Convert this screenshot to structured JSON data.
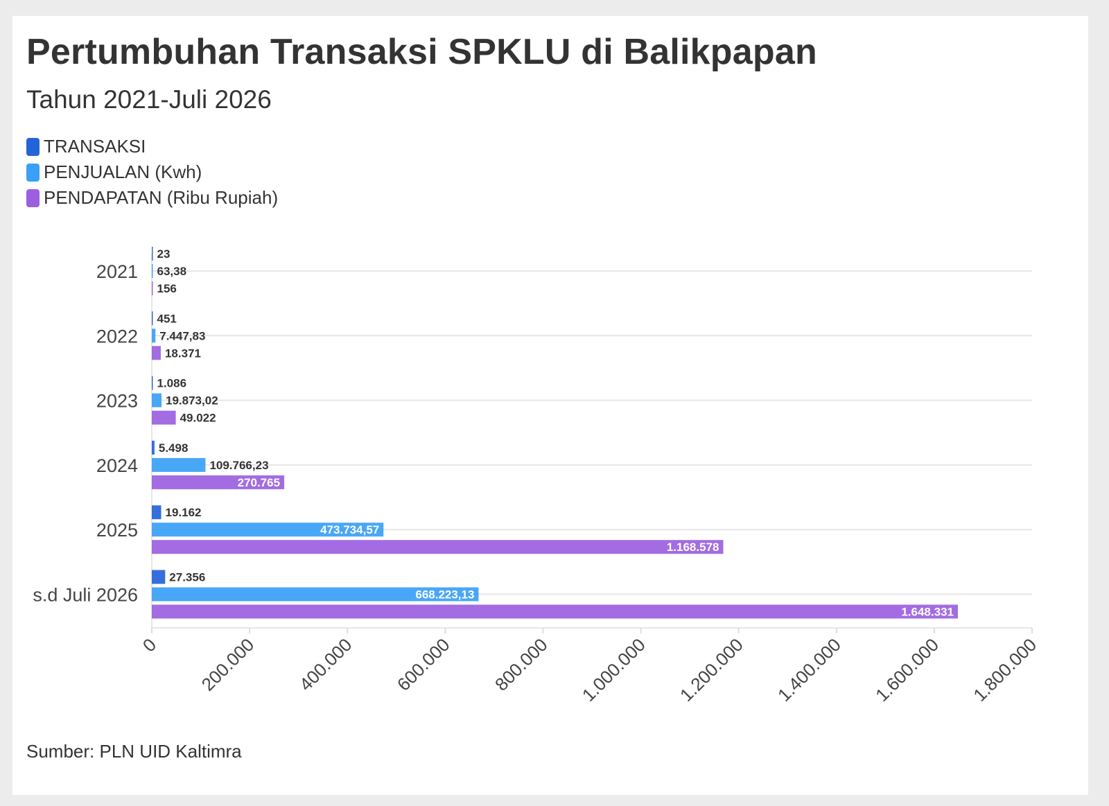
{
  "chart_data": {
    "type": "bar",
    "orientation": "horizontal",
    "title": "Pertumbuhan Transaksi SPKLU di Balikpapan",
    "subtitle": "Tahun 2021-Juli 2026",
    "categories": [
      "2021",
      "2022",
      "2023",
      "2024",
      "2025",
      "s.d Juli 2026"
    ],
    "series": [
      {
        "name": "TRANSAKSI",
        "color": "#2563d8",
        "values": [
          23,
          451,
          1086,
          5498,
          19162,
          27356
        ],
        "labels": [
          "23",
          "451",
          "1.086",
          "5.498",
          "19.162",
          "27.356"
        ]
      },
      {
        "name": "PENJUALAN (Kwh)",
        "color": "#3aa0f7",
        "values": [
          63.38,
          7447.83,
          19873.02,
          109766.23,
          473734.57,
          668223.13
        ],
        "labels": [
          "63,38",
          "7.447,83",
          "19.873,02",
          "109.766,23",
          "473.734,57",
          "668.223,13"
        ]
      },
      {
        "name": "PENDAPATAN (Ribu Rupiah)",
        "color": "#9b5fe0",
        "values": [
          156,
          18371,
          49022,
          270765,
          1168578,
          1648331
        ],
        "labels": [
          "156",
          "18.371",
          "49.022",
          "270.765",
          "1.168.578",
          "1.648.331"
        ]
      }
    ],
    "xlim": [
      0,
      1800000
    ],
    "xticks": [
      0,
      200000,
      400000,
      600000,
      800000,
      1000000,
      1200000,
      1400000,
      1600000,
      1800000
    ],
    "xtick_labels": [
      "0",
      "200.000",
      "400.000",
      "600.000",
      "800.000",
      "1.000.000",
      "1.200.000",
      "1.400.000",
      "1.600.000",
      "1.800.000"
    ],
    "legend_position": "top-left",
    "grid": true
  },
  "source": "Sumber: PLN UID Kaltimra"
}
